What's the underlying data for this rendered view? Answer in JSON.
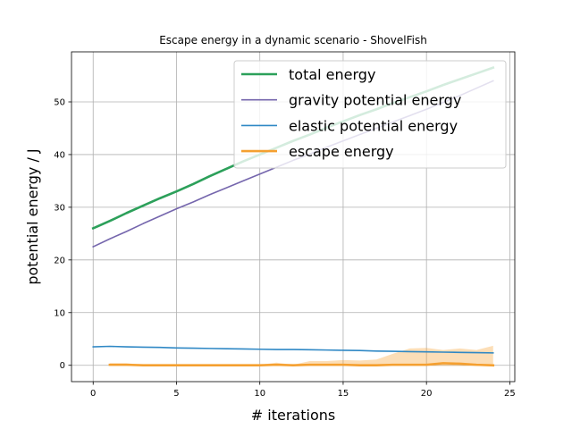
{
  "chart_data": {
    "type": "line",
    "title": "Escape energy in a dynamic scenario - ShovelFish",
    "xlabel": "# iterations",
    "ylabel": "potential energy / J",
    "xlim": [
      -1.3,
      25.3
    ],
    "ylim": [
      -3.1,
      59.5
    ],
    "xticks": [
      0,
      5,
      10,
      15,
      20,
      25
    ],
    "yticks": [
      0,
      10,
      20,
      30,
      40,
      50
    ],
    "grid": true,
    "legend_position": "top-right",
    "series": [
      {
        "name": "total energy",
        "color": "#2ca05a",
        "stroke_width": 2.6,
        "x": [
          0,
          1,
          2,
          3,
          4,
          5,
          6,
          7,
          8,
          9,
          10,
          11,
          12,
          13,
          14,
          15,
          16,
          17,
          18,
          19,
          20,
          21,
          22,
          23,
          24
        ],
        "y": [
          26.0,
          27.4,
          28.9,
          30.3,
          31.7,
          33.0,
          34.4,
          35.9,
          37.3,
          38.7,
          40.0,
          41.3,
          42.6,
          43.8,
          45.1,
          46.3,
          47.5,
          48.6,
          49.8,
          50.9,
          52.0,
          53.2,
          54.3,
          55.4,
          56.5
        ]
      },
      {
        "name": "gravity potential energy",
        "color": "#7566ad",
        "stroke_width": 1.6,
        "x": [
          0,
          1,
          2,
          3,
          4,
          5,
          6,
          7,
          8,
          9,
          10,
          11,
          12,
          13,
          14,
          15,
          16,
          17,
          18,
          19,
          20,
          21,
          22,
          23,
          24
        ],
        "y": [
          22.5,
          24.0,
          25.4,
          26.9,
          28.3,
          29.7,
          31.0,
          32.4,
          33.7,
          35.0,
          36.3,
          37.6,
          38.9,
          40.1,
          41.4,
          42.6,
          43.8,
          45.0,
          46.2,
          47.4,
          48.6,
          49.9,
          51.2,
          52.6,
          54.0
        ]
      },
      {
        "name": "elastic potential energy",
        "color": "#2f88c5",
        "stroke_width": 1.6,
        "x": [
          0,
          1,
          2,
          3,
          4,
          5,
          6,
          7,
          8,
          9,
          10,
          11,
          12,
          13,
          14,
          15,
          16,
          17,
          18,
          19,
          20,
          21,
          22,
          23,
          24
        ],
        "y": [
          3.5,
          3.6,
          3.5,
          3.45,
          3.4,
          3.3,
          3.25,
          3.2,
          3.15,
          3.1,
          3.05,
          3.0,
          3.0,
          2.95,
          2.9,
          2.85,
          2.8,
          2.7,
          2.65,
          2.6,
          2.55,
          2.5,
          2.45,
          2.4,
          2.35
        ]
      },
      {
        "name": "escape energy",
        "color": "#f5a030",
        "stroke_width": 2.6,
        "x": [
          1,
          2,
          3,
          4,
          5,
          6,
          7,
          8,
          9,
          10,
          11,
          12,
          13,
          14,
          15,
          16,
          17,
          18,
          19,
          20,
          21,
          22,
          23,
          24
        ],
        "y": [
          0.1,
          0.1,
          0.0,
          0.0,
          0.0,
          0.0,
          0.0,
          0.0,
          0.0,
          0.0,
          0.1,
          0.0,
          0.1,
          0.1,
          0.1,
          0.0,
          0.0,
          0.1,
          0.1,
          0.1,
          0.4,
          0.3,
          0.1,
          0.0
        ],
        "band": {
          "color": "#f5a030",
          "opacity": 0.35,
          "upper": [
            0.4,
            0.4,
            0.1,
            0.1,
            0.1,
            0.1,
            0.1,
            0.1,
            0.1,
            0.1,
            0.5,
            0.1,
            0.8,
            0.8,
            1.0,
            0.9,
            1.1,
            2.2,
            3.2,
            3.3,
            2.9,
            3.2,
            2.9,
            3.7
          ],
          "lower": [
            -0.1,
            -0.1,
            -0.1,
            -0.1,
            -0.1,
            -0.1,
            -0.1,
            -0.1,
            -0.1,
            -0.1,
            -0.1,
            -0.1,
            -0.1,
            -0.1,
            -0.1,
            -0.1,
            -0.1,
            -0.1,
            -0.1,
            -0.1,
            -0.1,
            -0.1,
            -0.1,
            -0.1
          ]
        }
      }
    ]
  }
}
